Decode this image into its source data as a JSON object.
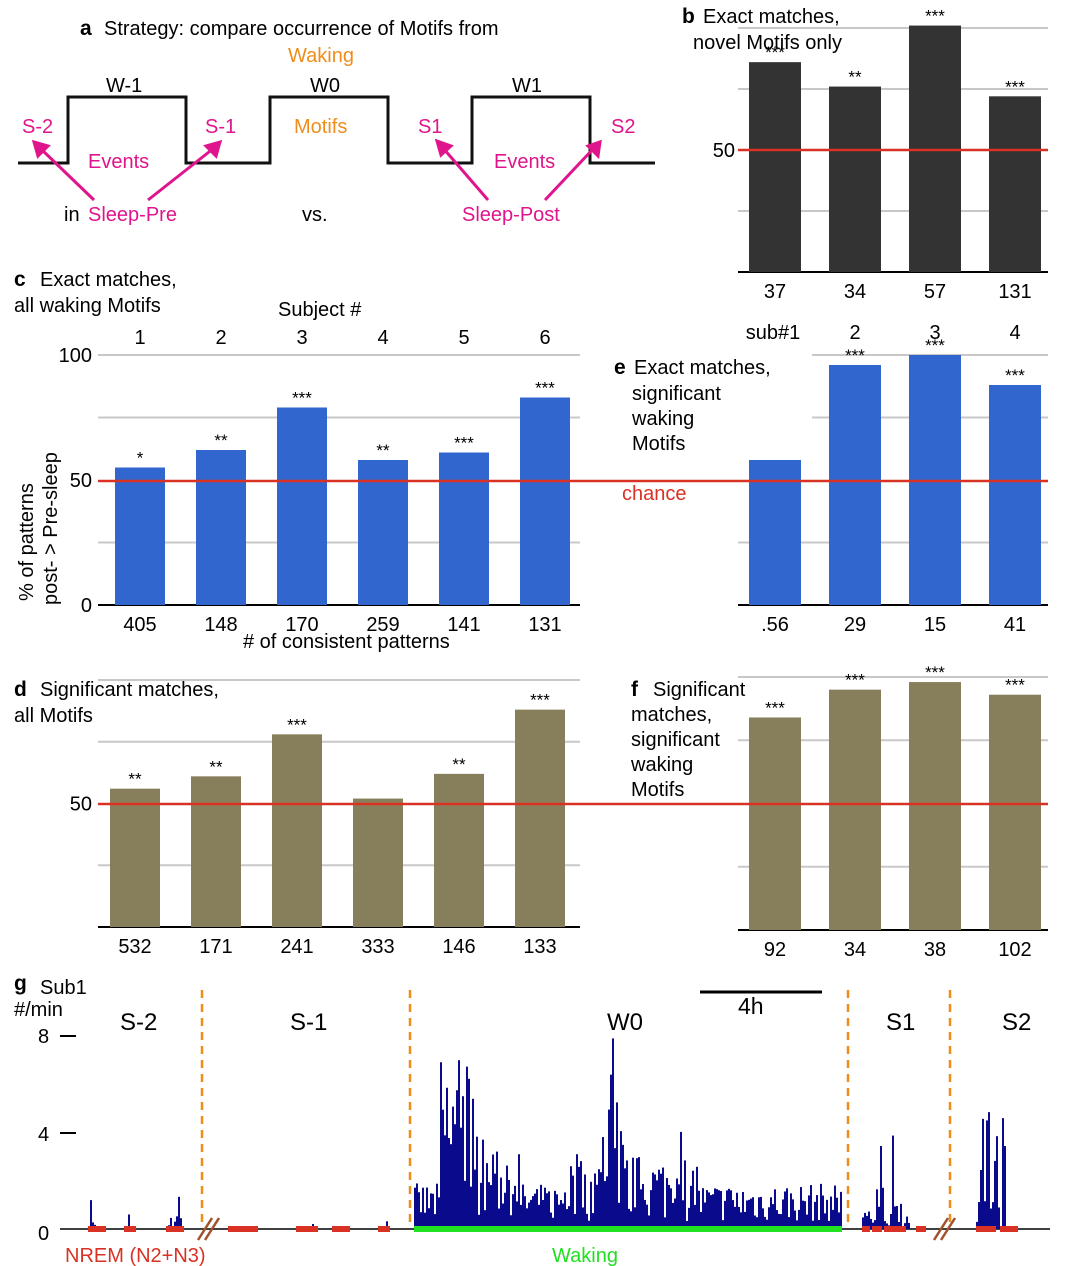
{
  "colors": {
    "blue": "#3266cf",
    "dark": "#333333",
    "olive": "#877f5b",
    "red": "#d93224",
    "magenta": "#e0148c",
    "orange": "#ef8d1c",
    "navy": "#0a0a8c",
    "green": "#22e022",
    "grid": "#c8c8c8"
  },
  "panel_a": {
    "letter": "a",
    "title": "Strategy: compare occurrence of Motifs from",
    "waking": "Waking",
    "w_minus1": "W-1",
    "w0": "W0",
    "w1": "W1",
    "motifs": "Motifs",
    "s_minus2": "S-2",
    "s_minus1": "S-1",
    "s1": "S1",
    "s2": "S2",
    "events_left": "Events",
    "events_right": "Events",
    "in_label": "in",
    "sleep_pre": "Sleep-Pre",
    "vs_label": "vs.",
    "sleep_post": "Sleep-Post"
  },
  "chart_data": [
    {
      "panel": "b",
      "type": "bar",
      "title": "Exact matches, novel Motifs only",
      "categories": [
        "37",
        "34",
        "57",
        "131"
      ],
      "values": [
        86,
        76,
        101,
        72
      ],
      "significance": [
        "***",
        "**",
        "***",
        "***"
      ],
      "ytick_labels": [
        "50"
      ],
      "ylim": [
        0,
        100
      ],
      "chance": 50
    },
    {
      "panel": "c",
      "type": "bar",
      "title": "Exact matches, all waking Motifs",
      "subject_label": "Subject #",
      "subjects": [
        "1",
        "2",
        "3",
        "4",
        "5",
        "6"
      ],
      "categories": [
        "405",
        "148",
        "170",
        "259",
        "141",
        "131"
      ],
      "values": [
        55,
        62,
        79,
        58,
        61,
        83
      ],
      "significance": [
        "*",
        "**",
        "***",
        "**",
        "***",
        "***"
      ],
      "ylabel": "% of patterns post- > Pre-sleep",
      "xlabel": "# of consistent patterns",
      "yticks": [
        "0",
        "50",
        "100"
      ],
      "ylim": [
        0,
        100
      ],
      "chance": 50,
      "chance_label": "chance"
    },
    {
      "panel": "d",
      "type": "bar",
      "title": "Significant matches, all Motifs",
      "categories": [
        "532",
        "171",
        "241",
        "333",
        "146",
        "133"
      ],
      "values": [
        56,
        61,
        78,
        52,
        62,
        88
      ],
      "significance": [
        "**",
        "**",
        "***",
        "",
        "**",
        "***"
      ],
      "ytick_labels": [
        "50"
      ],
      "ylim": [
        0,
        100
      ],
      "chance": 50
    },
    {
      "panel": "e",
      "type": "bar",
      "title": "Exact matches, significant waking Motifs",
      "subject_labels": [
        "sub#1",
        "2",
        "3",
        "4"
      ],
      "categories": [
        ".56",
        "29",
        "15",
        "41"
      ],
      "values": [
        82,
        96,
        100,
        88
      ],
      "significance": [
        "***",
        "***",
        "***",
        "***"
      ],
      "ylim": [
        0,
        100
      ],
      "chance": 50
    },
    {
      "panel": "f",
      "type": "bar",
      "title": "Significant matches, significant waking Motifs",
      "categories": [
        "92",
        "34",
        "38",
        "102"
      ],
      "values": [
        84,
        95,
        98,
        93
      ],
      "significance": [
        "***",
        "***",
        "***",
        "***"
      ],
      "ylim": [
        0,
        100
      ],
      "chance": 50
    },
    {
      "panel": "g",
      "type": "bar",
      "subject": "Sub1",
      "ylabel": "#/min",
      "yticks": [
        "0",
        "4",
        "8"
      ],
      "ylim": [
        0,
        8
      ],
      "scale_label": "4h",
      "segments": [
        "S-2",
        "S-1",
        "W0",
        "S1",
        "S2"
      ],
      "legend_nrem": "NREM (N2+N3)",
      "legend_waking": "Waking"
    }
  ]
}
